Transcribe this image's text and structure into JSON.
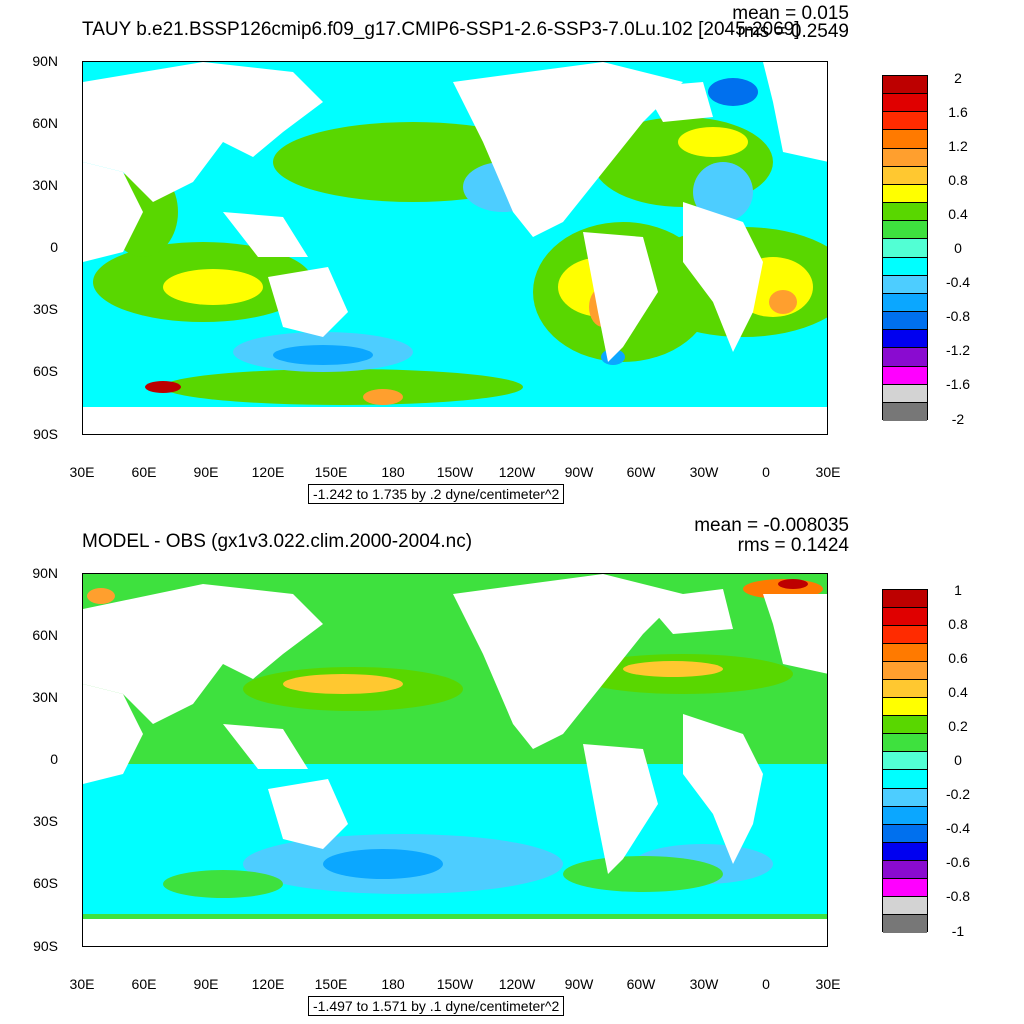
{
  "panels": [
    {
      "id": "top",
      "title": "TAUY b.e21.BSSP126cmip6.f09_g17.CMIP6-SSP1-2.6-SSP3-7.0Lu.102 [2045-2069]",
      "mean_label": "mean = 0.015",
      "rms_label": "rms = 0.2549",
      "range_label": "-1.242 to 1.735 by .2 dyne/centimeter^2",
      "colorbar_labels": [
        "2",
        "1.6",
        "1.2",
        "0.8",
        "0.4",
        "0",
        "-0.4",
        "-0.8",
        "-1.2",
        "-1.6",
        "-2"
      ]
    },
    {
      "id": "bottom",
      "title": "MODEL - OBS (gx1v3.022.clim.2000-2004.nc)",
      "mean_label": "mean = -0.008035",
      "rms_label": "rms = 0.1424",
      "range_label": "-1.497 to 1.571 by .1 dyne/centimeter^2",
      "colorbar_labels": [
        "1",
        "0.8",
        "0.6",
        "0.4",
        "0.2",
        "0",
        "-0.2",
        "-0.4",
        "-0.6",
        "-0.8",
        "-1"
      ]
    }
  ],
  "lat_labels": [
    "90N",
    "60N",
    "30N",
    "0",
    "30S",
    "60S",
    "90S"
  ],
  "lon_labels": [
    "30E",
    "60E",
    "90E",
    "120E",
    "150E",
    "180",
    "150W",
    "120W",
    "90W",
    "60W",
    "30W",
    "0",
    "30E"
  ],
  "colorbar_colors": [
    "#bd0000",
    "#e00000",
    "#ff2b00",
    "#ff7a00",
    "#ff9f2e",
    "#ffc830",
    "#ffff00",
    "#59d700",
    "#3ee13e",
    "#52ffd4",
    "#00ffff",
    "#4dcdff",
    "#0ba7ff",
    "#0070ee",
    "#0000f0",
    "#8a0bd0",
    "#ff00ff",
    "#d3d3d3",
    "#777777"
  ],
  "colors": {
    "land": "#ffffff",
    "ocean_base_top": "#00ffff",
    "ocean_base_bottom": "#3ee13e",
    "positive_a": "#59d700",
    "positive_b": "#ffff00",
    "positive_c": "#ff9f2e",
    "negative_a": "#4dcdff",
    "negative_b": "#0ba7ff",
    "negative_c": "#0070ee",
    "extreme_red": "#bd0000"
  }
}
